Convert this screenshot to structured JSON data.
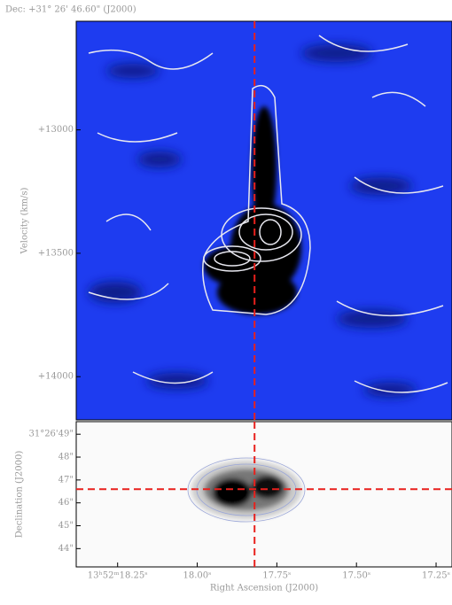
{
  "chart_data": [
    {
      "type": "image",
      "title": "Dec: +31° 26' 46.60\" (J2000)",
      "y_label": "Velocity (km/s)",
      "ylim": [
        12560,
        14175
      ],
      "y_inverted": true,
      "yticks": [
        {
          "value": 13000,
          "label": "+13000"
        },
        {
          "value": 13500,
          "label": "+13500"
        },
        {
          "value": 14000,
          "label": "+14000"
        }
      ],
      "xlim": [
        18.38,
        17.2
      ],
      "crosshair": {
        "x": 17.82
      }
    },
    {
      "type": "image",
      "x_label": "Right Ascension (J2000)",
      "y_label": "Declination (J2000)",
      "xlim": [
        18.38,
        17.2
      ],
      "ylim": [
        43.2,
        49.55
      ],
      "xticks": [
        {
          "value": 18.25,
          "label": "13ʰ52ᵐ18.25ˢ"
        },
        {
          "value": 18.0,
          "label": "18.00ˢ"
        },
        {
          "value": 17.75,
          "label": "17.75ˢ"
        },
        {
          "value": 17.5,
          "label": "17.50ˢ"
        },
        {
          "value": 17.25,
          "label": "17.25ˢ"
        }
      ],
      "yticks": [
        {
          "value": 49,
          "label": "31°26'49\""
        },
        {
          "value": 48,
          "label": "48\""
        },
        {
          "value": 47,
          "label": "47\""
        },
        {
          "value": 46,
          "label": "46\""
        },
        {
          "value": 45,
          "label": "45\""
        },
        {
          "value": 44,
          "label": "44\""
        }
      ],
      "crosshair": {
        "x": 17.82,
        "y": 46.6
      }
    }
  ]
}
